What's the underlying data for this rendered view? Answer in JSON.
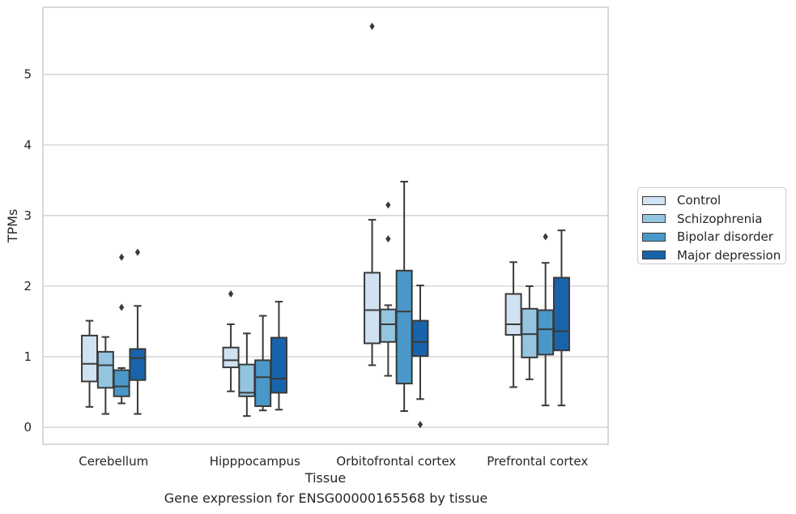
{
  "chart_data": {
    "type": "box",
    "xlabel": "Tissue",
    "ylabel": "TPMs",
    "ylim": [
      -0.24,
      5.95
    ],
    "yticks": [
      0,
      1,
      2,
      3,
      4,
      5
    ],
    "grid": "horizontal",
    "legend_position": "right",
    "categories": [
      "Cerebellum",
      "Hipppocampus",
      "Orbitofrontal cortex",
      "Prefrontal cortex"
    ],
    "series": [
      {
        "name": "Control",
        "color": "#d0e1f2",
        "boxes": [
          {
            "whislo": 0.29,
            "q1": 0.65,
            "med": 0.9,
            "q3": 1.3,
            "whishi": 1.51,
            "fliers": []
          },
          {
            "whislo": 0.51,
            "q1": 0.85,
            "med": 0.95,
            "q3": 1.13,
            "whishi": 1.46,
            "fliers": [
              1.89
            ]
          },
          {
            "whislo": 0.88,
            "q1": 1.19,
            "med": 1.66,
            "q3": 2.19,
            "whishi": 2.94,
            "fliers": [
              5.68
            ]
          },
          {
            "whislo": 0.57,
            "q1": 1.31,
            "med": 1.46,
            "q3": 1.89,
            "whishi": 2.34,
            "fliers": []
          }
        ]
      },
      {
        "name": "Schizophrenia",
        "color": "#94c4df",
        "boxes": [
          {
            "whislo": 0.19,
            "q1": 0.56,
            "med": 0.88,
            "q3": 1.07,
            "whishi": 1.28,
            "fliers": []
          },
          {
            "whislo": 0.16,
            "q1": 0.44,
            "med": 0.49,
            "q3": 0.89,
            "whishi": 1.33,
            "fliers": []
          },
          {
            "whislo": 0.73,
            "q1": 1.21,
            "med": 1.46,
            "q3": 1.67,
            "whishi": 1.73,
            "fliers": [
              2.67,
              3.15
            ]
          },
          {
            "whislo": 0.68,
            "q1": 0.99,
            "med": 1.32,
            "q3": 1.68,
            "whishi": 2.0,
            "fliers": []
          }
        ]
      },
      {
        "name": "Bipolar disorder",
        "color": "#4a98c9",
        "boxes": [
          {
            "whislo": 0.34,
            "q1": 0.44,
            "med": 0.58,
            "q3": 0.81,
            "whishi": 0.84,
            "fliers": [
              1.7,
              2.41
            ]
          },
          {
            "whislo": 0.24,
            "q1": 0.3,
            "med": 0.71,
            "q3": 0.95,
            "whishi": 1.58,
            "fliers": []
          },
          {
            "whislo": 0.23,
            "q1": 0.62,
            "med": 1.64,
            "q3": 2.22,
            "whishi": 3.48,
            "fliers": []
          },
          {
            "whislo": 0.31,
            "q1": 1.03,
            "med": 1.39,
            "q3": 1.66,
            "whishi": 2.33,
            "fliers": [
              2.7
            ]
          }
        ]
      },
      {
        "name": "Major depression",
        "color": "#1764ab",
        "boxes": [
          {
            "whislo": 0.19,
            "q1": 0.67,
            "med": 0.98,
            "q3": 1.11,
            "whishi": 1.72,
            "fliers": [
              2.48
            ]
          },
          {
            "whislo": 0.25,
            "q1": 0.49,
            "med": 0.69,
            "q3": 1.27,
            "whishi": 1.78,
            "fliers": []
          },
          {
            "whislo": 0.4,
            "q1": 1.01,
            "med": 1.21,
            "q3": 1.51,
            "whishi": 2.01,
            "fliers": [
              0.04
            ]
          },
          {
            "whislo": 0.31,
            "q1": 1.09,
            "med": 1.36,
            "q3": 2.12,
            "whishi": 2.79,
            "fliers": []
          }
        ]
      }
    ]
  },
  "caption": "Gene expression for ENSG00000165568 by tissue"
}
